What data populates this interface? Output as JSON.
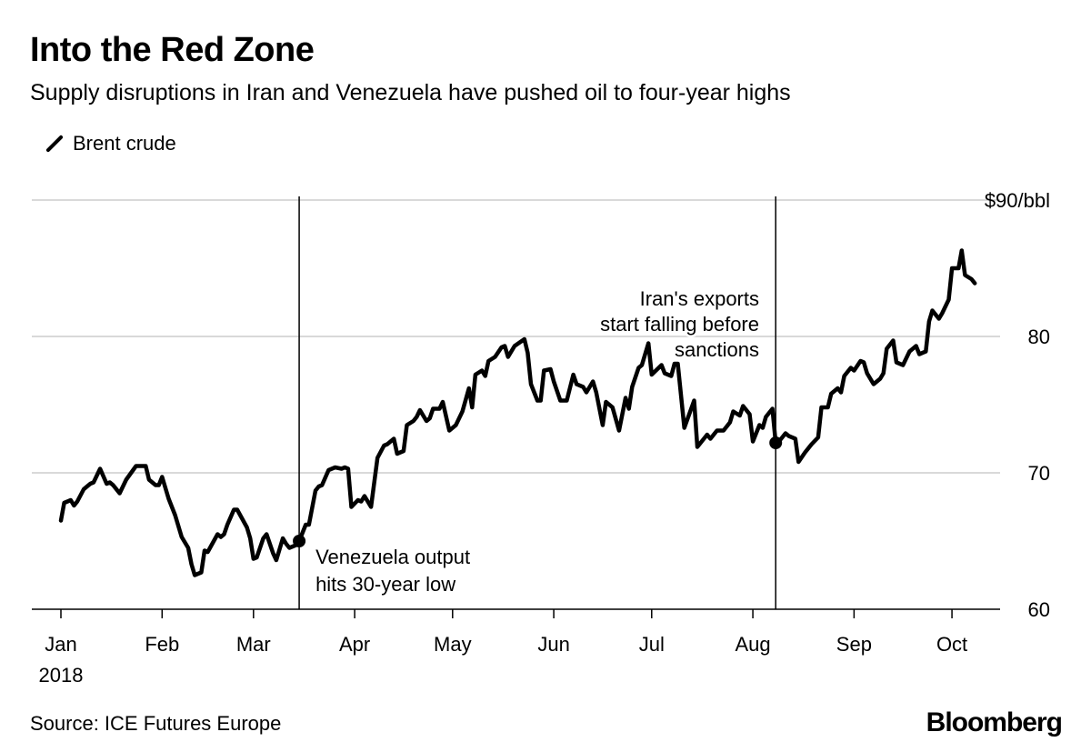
{
  "header": {
    "title": "Into the Red Zone",
    "subtitle": "Supply disruptions in Iran and Venezuela have pushed oil to four-year highs"
  },
  "footer": {
    "source": "Source: ICE Futures Europe",
    "logo": "Bloomberg"
  },
  "colors": {
    "line": "#000000",
    "grid": "#d9d9d9",
    "axis": "#000000"
  },
  "chart_data": {
    "type": "line",
    "title": "Into the Red Zone",
    "xlabel": "",
    "ylabel": "",
    "x_unit": "days since Jan 1, 2018",
    "legend": {
      "position": "top-left",
      "entries": [
        "Brent crude"
      ]
    },
    "ylim": [
      60,
      90
    ],
    "xlim": [
      -9,
      287
    ],
    "grid": true,
    "y_ticks": [
      {
        "value": 60,
        "label": "60"
      },
      {
        "value": 70,
        "label": "70"
      },
      {
        "value": 80,
        "label": "80"
      },
      {
        "value": 90,
        "label": "$90/bbl"
      }
    ],
    "x_ticks": [
      {
        "value": 0,
        "label": "Jan",
        "sublabel": "2018"
      },
      {
        "value": 31,
        "label": "Feb"
      },
      {
        "value": 59,
        "label": "Mar"
      },
      {
        "value": 90,
        "label": "Apr"
      },
      {
        "value": 120,
        "label": "May"
      },
      {
        "value": 151,
        "label": "Jun"
      },
      {
        "value": 181,
        "label": "Jul"
      },
      {
        "value": 212,
        "label": "Aug"
      },
      {
        "value": 243,
        "label": "Sep"
      },
      {
        "value": 273,
        "label": "Oct"
      }
    ],
    "series": [
      {
        "name": "Brent crude",
        "x": [
          0,
          1,
          3,
          4,
          5,
          7,
          9,
          10,
          12,
          14,
          15,
          16,
          18,
          20,
          23,
          25,
          26,
          27,
          29,
          30,
          31,
          33,
          35,
          37,
          39,
          40,
          41,
          43,
          44,
          45,
          48,
          49,
          50,
          51,
          53,
          54,
          57,
          58,
          59,
          60,
          62,
          63,
          65,
          66,
          68,
          69,
          70,
          72,
          73,
          74,
          75,
          76,
          78,
          79,
          80,
          82,
          84,
          86,
          87,
          88,
          89,
          91,
          92,
          93,
          95,
          97,
          99,
          100,
          102,
          103,
          105,
          106,
          108,
          109,
          110,
          112,
          113,
          114,
          116,
          117,
          119,
          121,
          123,
          125,
          126,
          127,
          129,
          130,
          131,
          133,
          135,
          136,
          137,
          139,
          142,
          143,
          144,
          146,
          147,
          148,
          150,
          151,
          153,
          155,
          157,
          158,
          160,
          161,
          163,
          164,
          166,
          167,
          169,
          171,
          173,
          174,
          175,
          177,
          178,
          180,
          181,
          184,
          185,
          187,
          188,
          189,
          191,
          194,
          195,
          198,
          199,
          201,
          203,
          205,
          206,
          208,
          209,
          211,
          212,
          214,
          215,
          216,
          218,
          219,
          220,
          222,
          223,
          225,
          226,
          228,
          230,
          232,
          233,
          235,
          236,
          238,
          239,
          240,
          242,
          243,
          245,
          246,
          247,
          249,
          251,
          252,
          253,
          255,
          256,
          258,
          260,
          262,
          263,
          265,
          266,
          267,
          269,
          270,
          272,
          273,
          275,
          276,
          277,
          279,
          280
        ],
        "y": [
          66.5,
          67.8,
          68.0,
          67.6,
          67.9,
          68.8,
          69.2,
          69.3,
          70.3,
          69.2,
          69.3,
          69.1,
          68.5,
          69.5,
          70.5,
          70.5,
          70.5,
          69.5,
          69.1,
          69.1,
          69.7,
          68.1,
          66.9,
          65.3,
          64.5,
          63.3,
          62.5,
          62.7,
          64.3,
          64.2,
          65.5,
          65.3,
          65.5,
          66.2,
          67.3,
          67.3,
          66.0,
          65.2,
          63.7,
          63.8,
          65.2,
          65.5,
          64.1,
          63.6,
          65.2,
          64.8,
          64.5,
          64.7,
          65.0,
          65.6,
          66.2,
          66.2,
          68.7,
          69.0,
          69.1,
          70.2,
          70.4,
          70.3,
          70.4,
          70.3,
          67.5,
          68.0,
          67.9,
          68.3,
          67.5,
          71.1,
          72.0,
          72.1,
          72.5,
          71.4,
          71.6,
          73.5,
          73.8,
          74.1,
          74.6,
          73.8,
          74.0,
          74.7,
          74.7,
          75.2,
          73.1,
          73.5,
          74.5,
          76.2,
          74.8,
          77.2,
          77.5,
          77.1,
          78.2,
          78.5,
          79.2,
          79.3,
          78.5,
          79.3,
          79.8,
          78.8,
          76.5,
          75.3,
          75.3,
          77.5,
          77.6,
          76.7,
          75.3,
          75.3,
          77.2,
          76.5,
          76.3,
          75.9,
          76.7,
          75.9,
          73.5,
          75.2,
          74.8,
          73.1,
          75.5,
          74.7,
          76.3,
          77.7,
          77.9,
          79.5,
          77.2,
          77.9,
          77.3,
          77.1,
          78.0,
          78.0,
          73.3,
          75.3,
          71.9,
          72.8,
          72.5,
          73.1,
          73.1,
          73.7,
          74.5,
          74.2,
          74.9,
          74.3,
          72.3,
          73.5,
          73.3,
          74.1,
          74.7,
          72.2,
          72.3,
          72.9,
          72.7,
          72.5,
          70.8,
          71.5,
          72.1,
          72.6,
          74.8,
          74.8,
          75.8,
          76.2,
          75.9,
          77.1,
          77.7,
          77.5,
          78.2,
          78.1,
          77.3,
          76.5,
          76.9,
          77.3,
          79.1,
          79.7,
          78.1,
          77.9,
          78.9,
          79.3,
          78.7,
          78.9,
          81.1,
          81.9,
          81.3,
          81.7,
          82.7,
          85.0,
          85.0,
          86.3,
          84.5,
          84.2,
          83.9
        ]
      }
    ],
    "annotations": [
      {
        "x": 73,
        "y": 65.0,
        "lines": [
          "Venezuela output",
          "hits 30-year low"
        ]
      },
      {
        "x": 219,
        "y": 72.2,
        "lines": [
          "Iran's exports",
          "start falling before",
          "sanctions"
        ]
      }
    ]
  }
}
